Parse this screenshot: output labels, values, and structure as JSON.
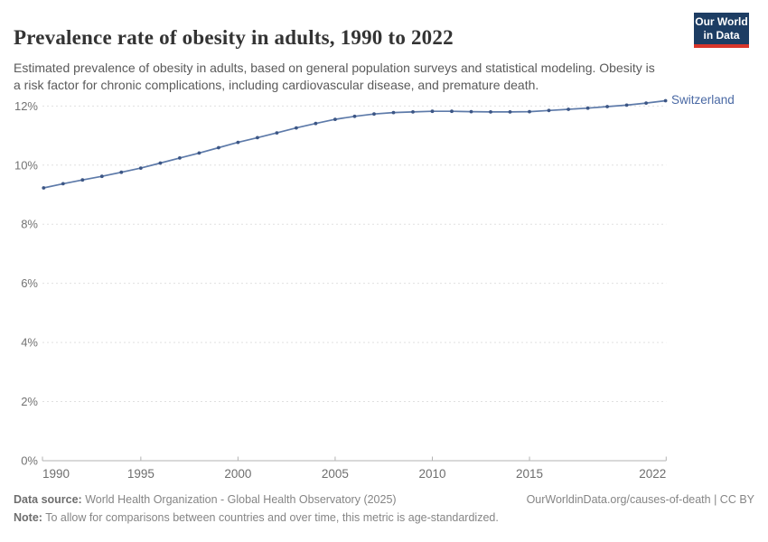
{
  "header": {
    "title": "Prevalence rate of obesity in adults, 1990 to 2022",
    "subtitle": "Estimated prevalence of obesity in adults, based on general population surveys and statistical modeling. Obesity is a risk factor for chronic complications, including cardiovascular disease, and premature death.",
    "logo": {
      "line1": "Our World",
      "line2": "in Data"
    }
  },
  "chart_data": {
    "type": "line",
    "title": "Prevalence rate of obesity in adults, 1990 to 2022",
    "x": [
      1990,
      1991,
      1992,
      1993,
      1994,
      1995,
      1996,
      1997,
      1998,
      1999,
      2000,
      2001,
      2002,
      2003,
      2004,
      2005,
      2006,
      2007,
      2008,
      2009,
      2010,
      2011,
      2012,
      2013,
      2014,
      2015,
      2016,
      2017,
      2018,
      2019,
      2020,
      2021,
      2022
    ],
    "series": [
      {
        "name": "Switzerland",
        "values": [
          9.23,
          9.37,
          9.5,
          9.62,
          9.76,
          9.9,
          10.07,
          10.24,
          10.41,
          10.59,
          10.77,
          10.93,
          11.09,
          11.26,
          11.41,
          11.55,
          11.65,
          11.73,
          11.78,
          11.8,
          11.82,
          11.82,
          11.81,
          11.8,
          11.8,
          11.81,
          11.85,
          11.89,
          11.93,
          11.98,
          12.03,
          12.1,
          12.18
        ]
      }
    ],
    "xlabel": "",
    "ylabel": "",
    "ylim": [
      0,
      12.4
    ],
    "xlim": [
      1990,
      2022
    ],
    "yticks": {
      "values": [
        0,
        2,
        4,
        6,
        8,
        10,
        12
      ],
      "labels": [
        "0%",
        "2%",
        "4%",
        "6%",
        "8%",
        "10%",
        "12%"
      ]
    },
    "xticks": {
      "values": [
        1990,
        1995,
        2000,
        2005,
        2010,
        2015,
        2022
      ],
      "labels": [
        "1990",
        "1995",
        "2000",
        "2005",
        "2010",
        "2015",
        "2022"
      ]
    },
    "grid": "horizontal-dashed",
    "legend_position": "end-of-line-label",
    "colors": {
      "line": "#5d7aa9",
      "marker": "#3c5685",
      "entity_label": "#4a69a4",
      "grid": "#e0e0e0",
      "axis": "#b3b3b3",
      "ytick_label": "#737373",
      "xtick_label": "#6e6e6e"
    }
  },
  "footer": {
    "datasource_label": "Data source:",
    "datasource_text": " World Health Organization - Global Health Observatory (2025)",
    "attribution": "OurWorldinData.org/causes-of-death | CC BY",
    "note_label": "Note:",
    "note_text": " To allow for comparisons between countries and over time, this metric is age-standardized."
  }
}
